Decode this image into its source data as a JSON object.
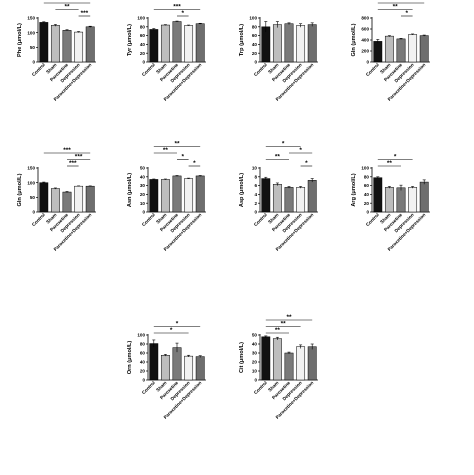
{
  "colors": {
    "bar_fills": [
      "#111111",
      "#bdbdbd",
      "#7a7a7a",
      "#f2f2f2",
      "#6e6e6e"
    ],
    "axis": "#000000",
    "bracket": "#000000"
  },
  "chart_data": [
    {
      "type": "bar",
      "ylabel": "Phe (μmol/L)",
      "ylim": [
        0,
        150
      ],
      "yticks": [
        0,
        50,
        100,
        150
      ],
      "categories": [
        "Control",
        "Sham",
        "Paroxetine",
        "Depression",
        "Paroxetine+Depression"
      ],
      "values": [
        135,
        125,
        108,
        102,
        120
      ],
      "errors": [
        2,
        3,
        2,
        2,
        2
      ],
      "significance": [
        {
          "from": 0,
          "to": 4,
          "label": "***"
        },
        {
          "from": 1,
          "to": 3,
          "label": "**"
        },
        {
          "from": 3,
          "to": 4,
          "label": "***"
        }
      ]
    },
    {
      "type": "bar",
      "ylabel": "Tyr (μmol/L)",
      "ylim": [
        0,
        100
      ],
      "yticks": [
        0,
        20,
        40,
        60,
        80,
        100
      ],
      "categories": [
        "Control",
        "Sham",
        "Paroxetine",
        "Depression",
        "Paroxetine+Depression"
      ],
      "values": [
        74,
        84,
        92,
        83,
        87
      ],
      "errors": [
        2,
        1,
        1,
        1,
        1
      ],
      "significance": [
        {
          "from": 0,
          "to": 4,
          "label": "***"
        },
        {
          "from": 2,
          "to": 3,
          "label": "*"
        }
      ]
    },
    {
      "type": "bar",
      "ylabel": "Trp (μmol/L)",
      "ylim": [
        0,
        100
      ],
      "yticks": [
        0,
        20,
        40,
        60,
        80,
        100
      ],
      "categories": [
        "Control",
        "Sham",
        "Paroxetine",
        "Depression",
        "Paroxetine+Depression"
      ],
      "values": [
        80,
        85,
        87,
        83,
        85
      ],
      "errors": [
        12,
        7,
        2,
        4,
        4
      ],
      "significance": []
    },
    {
      "type": "bar",
      "ylabel": "Gln (μmol/L)",
      "ylim": [
        0,
        800
      ],
      "yticks": [
        0,
        200,
        400,
        600,
        800
      ],
      "categories": [
        "Control",
        "Sham",
        "Paroxetine",
        "Depression",
        "Paroxetine+Depression"
      ],
      "values": [
        375,
        470,
        420,
        500,
        480
      ],
      "errors": [
        35,
        10,
        10,
        10,
        10
      ],
      "significance": [
        {
          "from": 0,
          "to": 4,
          "label": "**"
        },
        {
          "from": 0,
          "to": 3,
          "label": "**"
        },
        {
          "from": 2,
          "to": 3,
          "label": "*"
        }
      ]
    },
    {
      "type": "bar",
      "ylabel": "Gln (μmol/L)",
      "ylim": [
        0,
        150
      ],
      "yticks": [
        0,
        50,
        100,
        150
      ],
      "categories": [
        "Control",
        "Sham",
        "Paroxetine",
        "Depression",
        "Paroxetine+Depression"
      ],
      "values": [
        100,
        80,
        68,
        88,
        88
      ],
      "errors": [
        2,
        2,
        2,
        1,
        1
      ],
      "significance": [
        {
          "from": 0,
          "to": 4,
          "label": "***"
        },
        {
          "from": 2,
          "to": 4,
          "label": "***"
        },
        {
          "from": 2,
          "to": 3,
          "label": "***"
        }
      ]
    },
    {
      "type": "bar",
      "ylabel": "Asn (μmol/L)",
      "ylim": [
        0,
        50
      ],
      "yticks": [
        0,
        10,
        20,
        30,
        40,
        50
      ],
      "categories": [
        "Control",
        "Sham",
        "Paroxetine",
        "Depression",
        "Paroxetine+Depression"
      ],
      "values": [
        37,
        37,
        41,
        38,
        41
      ],
      "errors": [
        0.5,
        0.5,
        0.5,
        0.5,
        0.5
      ],
      "significance": [
        {
          "from": 0,
          "to": 4,
          "label": "**"
        },
        {
          "from": 0,
          "to": 2,
          "label": "**"
        },
        {
          "from": 3,
          "to": 4,
          "label": "*"
        },
        {
          "from": 2,
          "to": 3,
          "label": "*"
        }
      ]
    },
    {
      "type": "bar",
      "ylabel": "Asp (μmol/L)",
      "ylim": [
        0,
        10
      ],
      "yticks": [
        0,
        2,
        4,
        6,
        8,
        10
      ],
      "categories": [
        "Control",
        "Sham",
        "Paroxetine",
        "Depression",
        "Paroxetine+Depression"
      ],
      "values": [
        7.6,
        6.3,
        5.6,
        5.6,
        7.2
      ],
      "errors": [
        0.3,
        0.3,
        0.2,
        0.2,
        0.4
      ],
      "significance": [
        {
          "from": 0,
          "to": 3,
          "label": "*"
        },
        {
          "from": 0,
          "to": 2,
          "label": "**"
        },
        {
          "from": 3,
          "to": 4,
          "label": "*"
        },
        {
          "from": 2,
          "to": 4,
          "label": "*"
        }
      ]
    },
    {
      "type": "bar",
      "ylabel": "Arg (μmol/L)",
      "ylim": [
        0,
        100
      ],
      "yticks": [
        0,
        20,
        40,
        60,
        80,
        100
      ],
      "categories": [
        "Control",
        "Sham",
        "Paroxetine",
        "Depression",
        "Paroxetine+Depression"
      ],
      "values": [
        78,
        56,
        55,
        56,
        68
      ],
      "errors": [
        2,
        2,
        6,
        2,
        5
      ],
      "significance": [
        {
          "from": 0,
          "to": 3,
          "label": "*"
        },
        {
          "from": 0,
          "to": 2,
          "label": "**"
        }
      ]
    },
    {
      "type": "bar",
      "ylabel": "Orn (μmol/L)",
      "ylim": [
        0,
        100
      ],
      "yticks": [
        0,
        20,
        40,
        60,
        80,
        100
      ],
      "categories": [
        "Control",
        "Sham",
        "Paroxetine",
        "Depression",
        "Paroxetine+Depression"
      ],
      "values": [
        81,
        55,
        72,
        53,
        52
      ],
      "errors": [
        8,
        2,
        10,
        2,
        2
      ],
      "significance": [
        {
          "from": 0,
          "to": 4,
          "label": "*"
        },
        {
          "from": 0,
          "to": 3,
          "label": "*"
        }
      ]
    },
    {
      "type": "bar",
      "ylabel": "Cit (μmol/L)",
      "ylim": [
        0,
        50
      ],
      "yticks": [
        0,
        10,
        20,
        30,
        40,
        50
      ],
      "categories": [
        "Control",
        "Sham",
        "Paroxetine",
        "Depression",
        "Paroxetine+Depression"
      ],
      "values": [
        48,
        46,
        30,
        37,
        37
      ],
      "errors": [
        1,
        1.5,
        1,
        2,
        3
      ],
      "significance": [
        {
          "from": 0,
          "to": 4,
          "label": "**"
        },
        {
          "from": 0,
          "to": 3,
          "label": "**"
        },
        {
          "from": 0,
          "to": 2,
          "label": "**"
        }
      ]
    }
  ]
}
